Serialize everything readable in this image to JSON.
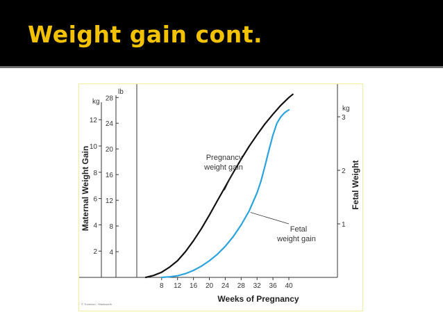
{
  "slide": {
    "title": "Weight gain cont.",
    "accent_color": "#f2c200",
    "header_background": "#000000"
  },
  "figure": {
    "credit": "© Thomson - Wadsworth"
  },
  "chart_data": {
    "type": "line",
    "xlabel": "Weeks of Pregnancy",
    "x_ticks": [
      8,
      12,
      16,
      20,
      24,
      28,
      32,
      36,
      40
    ],
    "xlim": [
      0,
      41
    ],
    "left_axis_kg": {
      "unit": "kg",
      "label": "Maternal Weight Gain",
      "ticks": [
        2,
        4,
        6,
        8,
        10,
        12
      ],
      "range": [
        0,
        12.8
      ]
    },
    "left_axis_lb": {
      "unit": "lb",
      "ticks": [
        4,
        8,
        12,
        16,
        20,
        24,
        28
      ],
      "range": [
        0,
        28.2
      ]
    },
    "right_axis": {
      "unit": "kg",
      "label": "Fetal Weight",
      "ticks": [
        1,
        2,
        3
      ],
      "range": [
        0,
        3.4
      ]
    },
    "series": [
      {
        "name": "Pregnancy weight gain",
        "axis": "left",
        "unit": "lb",
        "color": "#111111",
        "x": [
          4,
          6,
          8,
          10,
          12,
          14,
          16,
          18,
          20,
          22,
          24,
          26,
          28,
          30,
          32,
          34,
          36,
          38,
          40,
          41
        ],
        "y": [
          0,
          0.3,
          0.8,
          1.6,
          2.6,
          4.0,
          5.7,
          7.6,
          9.7,
          11.9,
          14.1,
          16.3,
          18.4,
          20.4,
          22.2,
          23.9,
          25.4,
          26.8,
          28.0,
          28.5
        ]
      },
      {
        "name": "Fetal weight gain",
        "axis": "right",
        "unit": "kg",
        "color": "#2ba3dc",
        "x": [
          8,
          10,
          12,
          14,
          16,
          18,
          20,
          22,
          24,
          26,
          28,
          30,
          32,
          33,
          34,
          35,
          36,
          37,
          38,
          39,
          40
        ],
        "y": [
          0,
          0.01,
          0.03,
          0.07,
          0.13,
          0.21,
          0.31,
          0.43,
          0.58,
          0.76,
          0.98,
          1.24,
          1.58,
          1.8,
          2.08,
          2.38,
          2.66,
          2.88,
          3.0,
          3.08,
          3.13
        ]
      }
    ],
    "annotations": [
      {
        "lines": [
          "Pregnancy",
          "weight gain"
        ],
        "series": "Pregnancy weight gain",
        "point": {
          "x": 24,
          "y_lb": 14.1
        }
      },
      {
        "lines": [
          "Fetal",
          "weight gain"
        ],
        "series": "Fetal weight gain",
        "point": {
          "x": 30,
          "y_kg": 1.24
        }
      }
    ],
    "grid": false,
    "legend": "none"
  }
}
